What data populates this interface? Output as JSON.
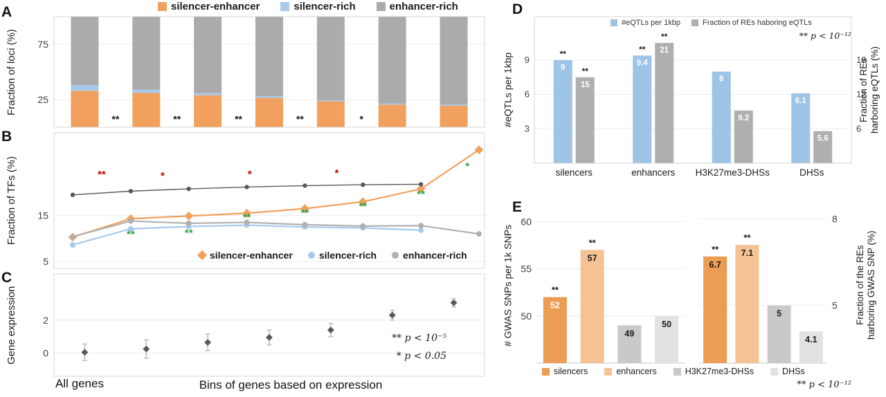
{
  "colors": {
    "silencer_enhancer": "#F1A15D",
    "silencer_rich": "#A6C9EC",
    "enhancer_rich": "#ABABAB",
    "enhancer_rich_line": "#B0B0B0",
    "dark_marker": "#595959",
    "error_bar": "#BFBFBF",
    "eqtl_blue": "#9DC3E6",
    "re_gray": "#AFAFAF",
    "silencers": "#ED9C54",
    "enhancers": "#F5C294",
    "h3k27me3_dhss": "#C9C9C9",
    "dhss": "#E2E2E2",
    "red_star": "#C00000",
    "green_star": "#2FA047",
    "grid": "#ECECEC",
    "border": "#D6D6D6"
  },
  "panel_letters": {
    "a": "A",
    "b": "B",
    "c": "C",
    "d": "D",
    "e": "E"
  },
  "shared_x": {
    "all_genes": "All genes",
    "bins_label": "Bins of genes based on expression"
  },
  "chart_data": [
    {
      "id": "panel_a",
      "type": "bar",
      "stacked": true,
      "ylabel": "Fraction of loci (%)",
      "ylim": [
        0,
        100
      ],
      "yticks": [
        25,
        75
      ],
      "n_bars": 7,
      "legend": [
        {
          "label": "silencer-enhancer",
          "color": "silencer_enhancer"
        },
        {
          "label": "silencer-rich",
          "color": "silencer_rich"
        },
        {
          "label": "enhancer-rich",
          "color": "enhancer_rich"
        }
      ],
      "series": [
        {
          "name": "silencer-enhancer",
          "color": "silencer_enhancer",
          "values": [
            33,
            31,
            29,
            26.5,
            23.5,
            20.5,
            19.5
          ]
        },
        {
          "name": "silencer-rich",
          "color": "silencer_rich",
          "values": [
            5,
            3,
            2,
            1.5,
            1,
            1,
            1
          ]
        },
        {
          "name": "enhancer-rich",
          "color": "enhancer_rich",
          "values": [
            62,
            66,
            69,
            72,
            75.5,
            78.5,
            79.5
          ]
        }
      ],
      "between_bar_stars": [
        "**",
        "**",
        "**",
        "**",
        "*",
        ""
      ]
    },
    {
      "id": "panel_b",
      "type": "line",
      "ylabel": "Fraction of TFs (%)",
      "ylim": [
        3.5,
        33
      ],
      "yticks": [
        5,
        15
      ],
      "x_count": 8,
      "legend": [
        {
          "label": "silencer-enhancer",
          "color": "silencer_enhancer",
          "marker": "diamond"
        },
        {
          "label": "silencer-rich",
          "color": "silencer_rich",
          "marker": "circle"
        },
        {
          "label": "enhancer-rich",
          "color": "enhancer_rich_line",
          "marker": "circle"
        }
      ],
      "series": [
        {
          "name": "silencer-enhancer",
          "color": "silencer_enhancer",
          "marker": "diamond",
          "values": [
            10.3,
            14.3,
            14.9,
            15.5,
            16.5,
            18.0,
            20.8,
            29.3
          ]
        },
        {
          "name": "silencer-rich",
          "color": "silencer_rich",
          "marker": "circle",
          "values": [
            8.6,
            12.1,
            12.6,
            12.9,
            12.5,
            12.3,
            11.8,
            null
          ]
        },
        {
          "name": "enhancer-rich",
          "color": "enhancer_rich_line",
          "marker": "circle",
          "values": [
            10.4,
            13.8,
            13.3,
            13.5,
            13.0,
            12.7,
            12.8,
            11.0
          ]
        },
        {
          "name": "reference",
          "color": "dark_marker",
          "marker": "circle",
          "values": [
            19.5,
            20.3,
            20.8,
            21.2,
            21.5,
            21.7,
            21.8,
            null
          ]
        }
      ],
      "annotations": [
        {
          "text": "**",
          "color": "red_star",
          "x": 1.5,
          "y": 23.2
        },
        {
          "text": "*",
          "color": "red_star",
          "x": 2.55,
          "y": 22.9
        },
        {
          "text": "*",
          "color": "red_star",
          "x": 4.05,
          "y": 23.3
        },
        {
          "text": "*",
          "color": "red_star",
          "x": 5.55,
          "y": 23.5
        },
        {
          "text": "**",
          "color": "green_star",
          "x": 2,
          "y": 10.2
        },
        {
          "text": "**",
          "color": "green_star",
          "x": 3,
          "y": 10.5
        },
        {
          "text": "**",
          "color": "green_star",
          "x": 4,
          "y": 13.9
        },
        {
          "text": "**",
          "color": "green_star",
          "x": 5,
          "y": 14.9
        },
        {
          "text": "**",
          "color": "green_star",
          "x": 6,
          "y": 16.3
        },
        {
          "text": "**",
          "color": "green_star",
          "x": 7,
          "y": 18.9
        },
        {
          "text": "*",
          "color": "green_star",
          "x": 7.8,
          "y": 25.0
        }
      ]
    },
    {
      "id": "panel_c",
      "type": "scatter_error",
      "ylabel": "Gene expression",
      "ylim": [
        -1.4,
        4.8
      ],
      "yticks": [
        0,
        2
      ],
      "values": [
        0.05,
        0.25,
        0.65,
        0.95,
        1.4,
        2.3,
        3.05
      ],
      "errors": [
        0.5,
        0.55,
        0.5,
        0.45,
        0.4,
        0.3,
        0.25
      ],
      "notes": [
        "** p < 10⁻⁵",
        "* p < 0.05"
      ]
    },
    {
      "id": "panel_d",
      "type": "grouped_bar_dual_axis",
      "categories": [
        "silencers",
        "enhancers",
        "H3K27me3-DHSs",
        "DHSs"
      ],
      "left_axis": {
        "label": "#eQTLs per 1kbp",
        "ticks": [
          3,
          6,
          9
        ],
        "lim": [
          0,
          12.8
        ]
      },
      "right_axis": {
        "label": "Fraction of REs\nharboring eQTLs (%)",
        "ticks": [
          6,
          12,
          18
        ],
        "lim": [
          0,
          25.6
        ]
      },
      "legend": [
        {
          "label": "#eQTLs per 1kbp",
          "color": "eqtl_blue"
        },
        {
          "label": "Fraction of REs haboring eQTLs",
          "color": "re_gray"
        }
      ],
      "note": "** p < 10⁻¹²",
      "series": [
        {
          "name": "#eQTLs per 1kbp",
          "axis": "left",
          "color": "eqtl_blue",
          "values": [
            9,
            9.4,
            8,
            6.1
          ],
          "labels": [
            "9",
            "9.4",
            "8",
            "6.1"
          ],
          "stars": [
            "**",
            "**",
            "",
            ""
          ]
        },
        {
          "name": "Fraction of REs haboring eQTLs",
          "axis": "right",
          "color": "re_gray",
          "values": [
            15,
            21,
            9.2,
            5.6
          ],
          "labels": [
            "15",
            "21",
            "9.2",
            "5.6"
          ],
          "stars": [
            "**",
            "**",
            "",
            ""
          ]
        }
      ]
    },
    {
      "id": "panel_e",
      "type": "bar_two_subplots",
      "subplots": [
        {
          "side": "left",
          "ylabel": "# GWAS SNPs per 1k SNPs",
          "ticks": [
            50,
            55,
            60
          ],
          "lim": [
            45,
            61.5
          ],
          "bars": [
            {
              "category": "silencers",
              "color": "silencers",
              "value": 52,
              "label": "52",
              "label_color": "#FFFFFF",
              "star": "**"
            },
            {
              "category": "enhancers",
              "color": "enhancers",
              "value": 57,
              "label": "57",
              "label_color": "#1A1A1A",
              "star": "**"
            },
            {
              "category": "H3K27me3-DHSs",
              "color": "h3k27me3_dhss",
              "value": 49,
              "label": "49",
              "label_color": "#1A1A1A",
              "star": ""
            },
            {
              "category": "DHSs",
              "color": "dhss",
              "value": 50,
              "label": "50",
              "label_color": "#1A1A1A",
              "star": ""
            }
          ]
        },
        {
          "side": "right",
          "ylabel": "Fraction of the REs\nharboring  GWAS SNP (%)",
          "ticks": [
            5,
            8
          ],
          "lim": [
            3,
            8.4
          ],
          "bars": [
            {
              "category": "silencers",
              "color": "silencers",
              "value": 6.7,
              "label": "6.7",
              "label_color": "#1A1A1A",
              "star": "**"
            },
            {
              "category": "enhancers",
              "color": "enhancers",
              "value": 7.1,
              "label": "7.1",
              "label_color": "#1A1A1A",
              "star": "**"
            },
            {
              "category": "H3K27me3-DHSs",
              "color": "h3k27me3_dhss",
              "value": 5,
              "label": "5",
              "label_color": "#1A1A1A",
              "star": ""
            },
            {
              "category": "DHSs",
              "color": "dhss",
              "value": 4.1,
              "label": "4.1",
              "label_color": "#1A1A1A",
              "star": ""
            }
          ]
        }
      ],
      "legend": [
        {
          "label": "silencers",
          "color": "silencers"
        },
        {
          "label": "enhancers",
          "color": "enhancers"
        },
        {
          "label": "H3K27me3-DHSs",
          "color": "h3k27me3_dhss"
        },
        {
          "label": "DHSs",
          "color": "dhss"
        }
      ],
      "note": "** p < 10⁻¹²"
    }
  ]
}
